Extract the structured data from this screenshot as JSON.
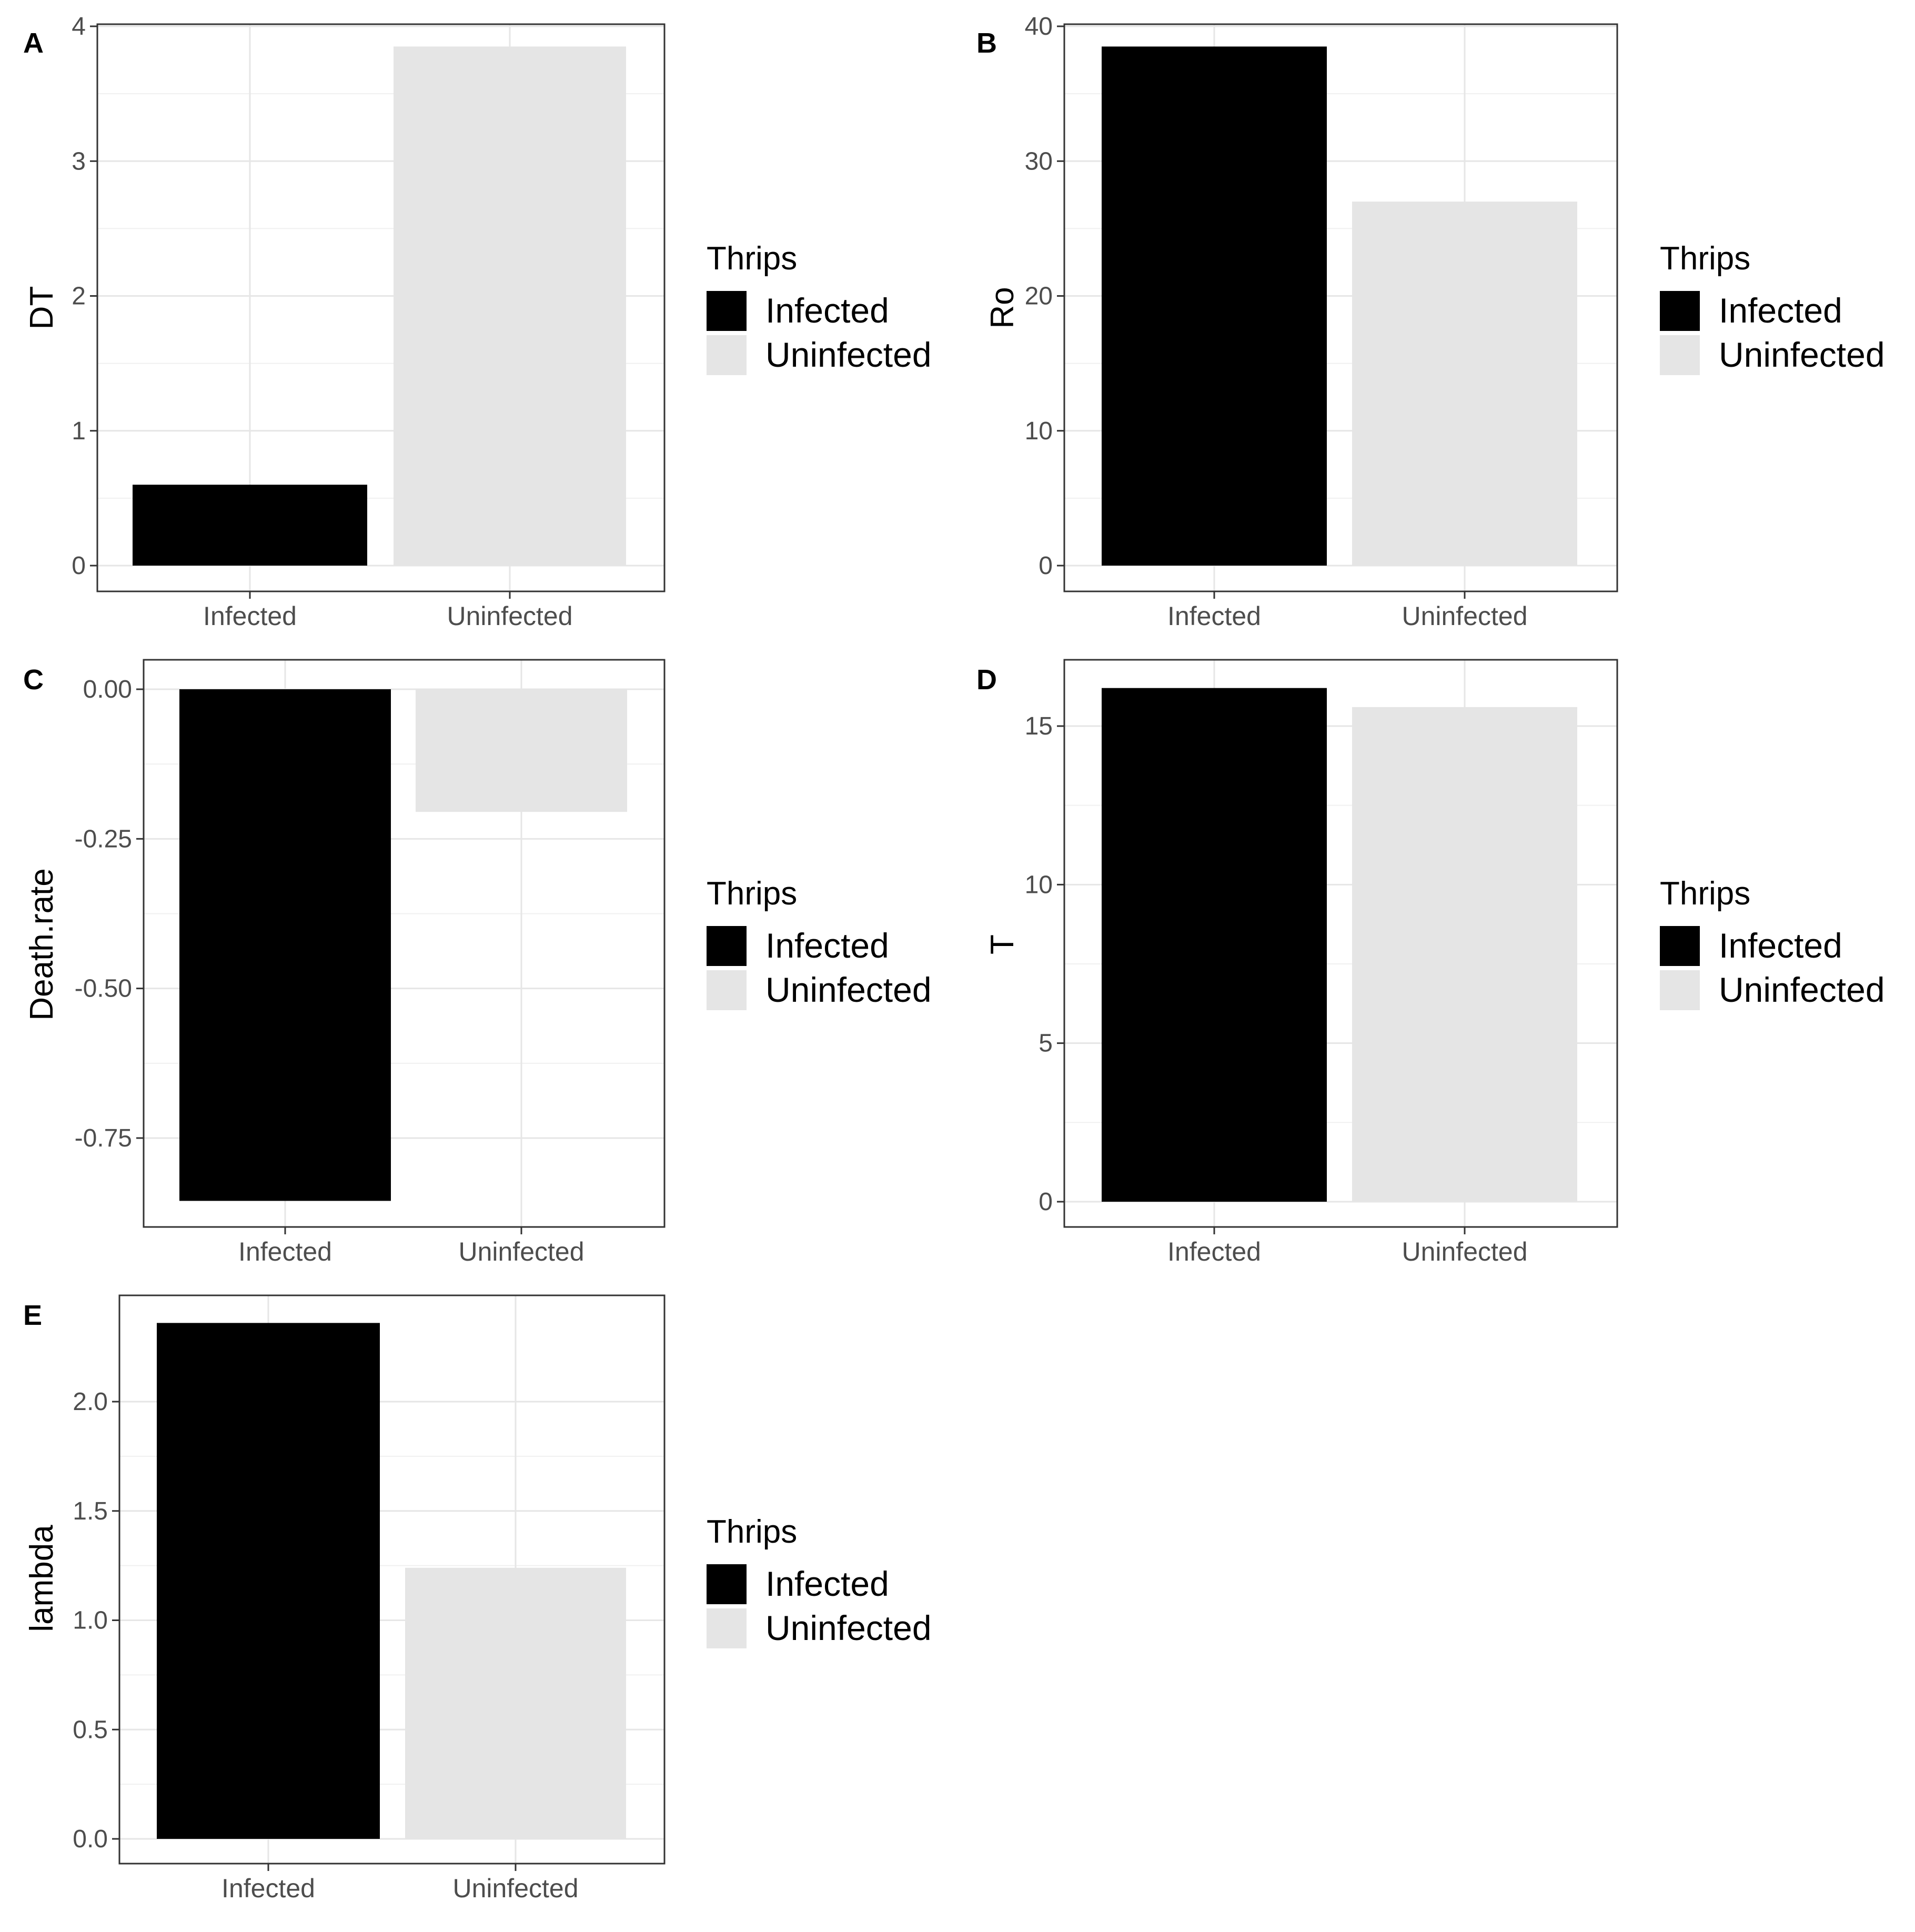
{
  "legend": {
    "title": "Thrips",
    "items": [
      {
        "label": "Infected",
        "color": "#000000"
      },
      {
        "label": "Uninfected",
        "color": "#e5e5e5"
      }
    ]
  },
  "chart_data": [
    {
      "panel": "A",
      "type": "bar",
      "categories": [
        "Infected",
        "Uninfected"
      ],
      "values": [
        0.6,
        3.85
      ],
      "ylabel": "DT",
      "xlabel": "",
      "ylim": [
        0,
        4
      ],
      "yticks": [
        "0",
        "1",
        "2",
        "3",
        "4"
      ],
      "colors": [
        "#000000",
        "#e5e5e5"
      ],
      "grid": true,
      "legend_position": "right"
    },
    {
      "panel": "B",
      "type": "bar",
      "categories": [
        "Infected",
        "Uninfected"
      ],
      "values": [
        38.5,
        27
      ],
      "ylabel": "Ro",
      "xlabel": "",
      "ylim": [
        0,
        40
      ],
      "yticks": [
        "0",
        "10",
        "20",
        "30",
        "40"
      ],
      "colors": [
        "#000000",
        "#e5e5e5"
      ],
      "grid": true,
      "legend_position": "right"
    },
    {
      "panel": "C",
      "type": "bar",
      "categories": [
        "Infected",
        "Uninfected"
      ],
      "values": [
        -0.855,
        -0.205
      ],
      "ylabel": "Death.rate",
      "xlabel": "",
      "ylim": [
        -0.855,
        0
      ],
      "yticks": [
        "0.00",
        "-0.25",
        "-0.50",
        "-0.75"
      ],
      "colors": [
        "#000000",
        "#e5e5e5"
      ],
      "grid": true,
      "legend_position": "right"
    },
    {
      "panel": "D",
      "type": "bar",
      "categories": [
        "Infected",
        "Uninfected"
      ],
      "values": [
        16.2,
        15.6
      ],
      "ylabel": "T",
      "xlabel": "",
      "ylim": [
        0,
        16.2
      ],
      "yticks": [
        "0",
        "5",
        "10",
        "15"
      ],
      "colors": [
        "#000000",
        "#e5e5e5"
      ],
      "grid": true,
      "legend_position": "right"
    },
    {
      "panel": "E",
      "type": "bar",
      "categories": [
        "Infected",
        "Uninfected"
      ],
      "values": [
        2.36,
        1.24
      ],
      "ylabel": "lambda",
      "xlabel": "",
      "ylim": [
        0,
        2.36
      ],
      "yticks": [
        "0.0",
        "0.5",
        "1.0",
        "1.5",
        "2.0"
      ],
      "colors": [
        "#000000",
        "#e5e5e5"
      ],
      "grid": true,
      "legend_position": "right"
    }
  ]
}
